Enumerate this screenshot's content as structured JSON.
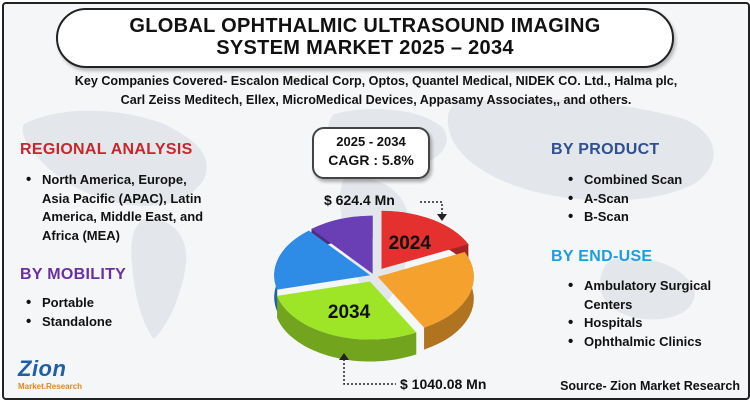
{
  "title_line1": "GLOBAL OPHTHALMIC ULTRASOUND IMAGING",
  "title_line2": "SYSTEM MARKET 2025 – 2034",
  "companies_line1": "Key Companies Covered- Escalon Medical Corp, Optos, Quantel Medical, NIDEK CO. Ltd., Halma plc,",
  "companies_line2": "Carl Zeiss Meditech, Ellex, MicroMedical Devices, Appasamy Associates,, and others.",
  "regional": {
    "heading": "REGIONAL ANALYSIS",
    "items": [
      "North America, Europe,",
      "Asia Pacific (APAC), Latin",
      "America, Middle East, and",
      "Africa (MEA)"
    ]
  },
  "mobility": {
    "heading": "BY MOBILITY",
    "items": [
      "Portable",
      "Standalone"
    ]
  },
  "product": {
    "heading": "BY PRODUCT",
    "items": [
      "Combined Scan",
      "A-Scan",
      "B-Scan"
    ]
  },
  "end_use": {
    "heading": "BY END-USE",
    "items_line1": "Ambulatory Surgical",
    "items_line2": "Centers",
    "items": [
      "Hospitals",
      "Ophthalmic Clinics"
    ]
  },
  "cagr": {
    "period": "2025 - 2034",
    "value": "CAGR : 5.8%"
  },
  "chart_data": {
    "type": "pie",
    "slice_labels": [
      "2024",
      "",
      "2034",
      "",
      ""
    ],
    "values": [
      18,
      24,
      29,
      18,
      11
    ],
    "slice_colors": [
      "#e53030",
      "#f5a12d",
      "#9ee528",
      "#2e8be6",
      "#6a3fb5"
    ],
    "annotations": {
      "value_2024": "$ 624.4 Mn",
      "value_2034": "$ 1040.08 Mn"
    }
  },
  "colors": {
    "regional_heading": "#c7262c",
    "mobility_heading": "#6a2fa0",
    "product_heading": "#2f4f8f",
    "end_use_heading": "#1aa0e0"
  },
  "logo": {
    "word": "Zion",
    "sub": "Market.Research"
  },
  "source": "Source- Zion Market Research"
}
